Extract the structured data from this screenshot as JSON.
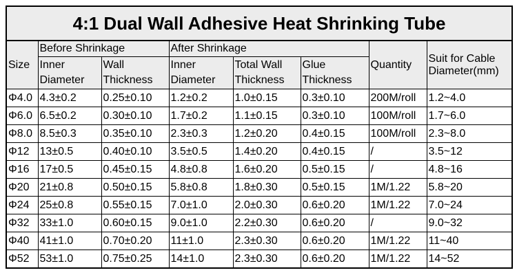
{
  "title": "4:1 Dual Wall Adhesive Heat Shrinking Tube",
  "headers": {
    "size": "Size",
    "before_group": "Before Shrinkage",
    "after_group": "After Shrinkage",
    "inner_1": "Inner",
    "inner_2": "Diameter",
    "wall_1": "Wall",
    "wall_2": "Thickness",
    "after_inner_1": "Inner",
    "after_inner_2": "Diameter",
    "total_wall_1": "Total Wall",
    "total_wall_2": "Thickness",
    "glue_1": "Glue",
    "glue_2": "Thickness",
    "quantity": "Quantity",
    "suit_1": "Suit for Cable",
    "suit_2": "Diameter(mm)"
  },
  "rows": [
    {
      "size": "Φ4.0",
      "inner_before": "4.3±0.2",
      "wall_before": "0.25±0.10",
      "inner_after": "1.2±0.2",
      "total_wall": "1.0±0.15",
      "glue": "0.3±0.10",
      "quantity": "200M/roll",
      "suit": "1.2~4.0"
    },
    {
      "size": "Φ6.0",
      "inner_before": "6.5±0.2",
      "wall_before": "0.30±0.10",
      "inner_after": "1.7±0.2",
      "total_wall": "1.1±0.15",
      "glue": "0.3±0.10",
      "quantity": "100M/roll",
      "suit": "1.7~6.0"
    },
    {
      "size": "Φ8.0",
      "inner_before": "8.5±0.3",
      "wall_before": "0.35±0.10",
      "inner_after": "2.3±0.3",
      "total_wall": "1.2±0.20",
      "glue": "0.4±0.15",
      "quantity": "100M/roll",
      "suit": "2.3~8.0"
    },
    {
      "size": "Φ12",
      "inner_before": "13±0.5",
      "wall_before": "0.40±0.10",
      "inner_after": "3.5±0.5",
      "total_wall": "1.4±0.20",
      "glue": "0.4±0.15",
      "quantity": "/",
      "suit": "3.5~12"
    },
    {
      "size": "Φ16",
      "inner_before": "17±0.5",
      "wall_before": "0.45±0.15",
      "inner_after": "4.8±0.8",
      "total_wall": "1.6±0.20",
      "glue": "0.5±0.15",
      "quantity": "/",
      "suit": "4.8~16"
    },
    {
      "size": "Φ20",
      "inner_before": "21±0.8",
      "wall_before": "0.50±0.15",
      "inner_after": "5.8±0.8",
      "total_wall": "1.8±0.30",
      "glue": "0.5±0.15",
      "quantity": "1M/1.22",
      "suit": "5.8~20"
    },
    {
      "size": "Φ24",
      "inner_before": "25±0.8",
      "wall_before": "0.55±0.15",
      "inner_after": "7.0±1.0",
      "total_wall": "2.0±0.30",
      "glue": "0.6±0.20",
      "quantity": "1M/1.22",
      "suit": "7.0~24"
    },
    {
      "size": "Φ32",
      "inner_before": "33±1.0",
      "wall_before": "0.60±0.15",
      "inner_after": "9.0±1.0",
      "total_wall": "2.2±0.30",
      "glue": "0.6±0.20",
      "quantity": "/",
      "suit": "9.0~32"
    },
    {
      "size": "Φ40",
      "inner_before": "41±1.0",
      "wall_before": "0.70±0.20",
      "inner_after": "11±1.0",
      "total_wall": "2.3±0.30",
      "glue": "0.6±0.20",
      "quantity": "1M/1.22",
      "suit": "11~40"
    },
    {
      "size": "Φ52",
      "inner_before": "53±1.0",
      "wall_before": "0.75±0.25",
      "inner_after": "14±1.0",
      "total_wall": "2.3±0.30",
      "glue": "0.6±0.20",
      "quantity": "1M/1.22",
      "suit": "14~52"
    }
  ]
}
